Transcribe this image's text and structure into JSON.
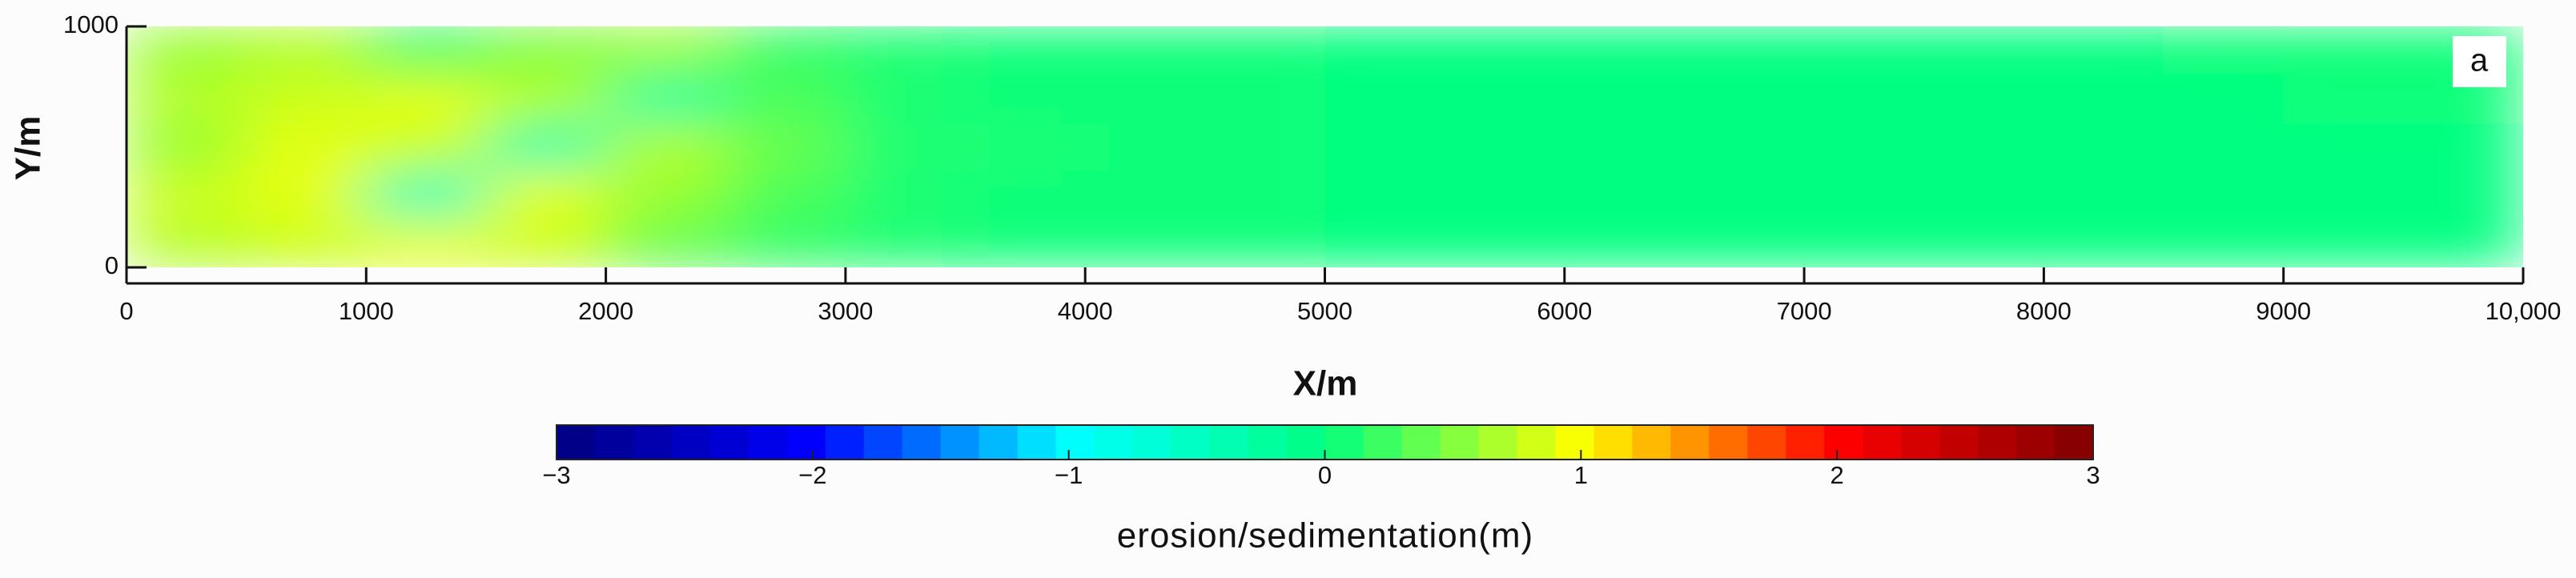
{
  "chart_data": {
    "type": "heatmap",
    "annotation": "a",
    "x_label": "X/m",
    "y_label": "Y/m",
    "x_bins": [
      0,
      500,
      1000,
      1500,
      2000,
      2500,
      3000,
      3500,
      4000,
      4500,
      5000,
      5500,
      6000,
      6500,
      7000,
      7500,
      8000,
      8500,
      9000,
      9500,
      10000
    ],
    "y_bins": [
      0,
      200,
      400,
      600,
      800,
      1000
    ],
    "z": [
      [
        0.7,
        0.8,
        0.9,
        0.8,
        0.4,
        0.2,
        0.1,
        0.05,
        0.05,
        0.05,
        0,
        0,
        0,
        0,
        0,
        0,
        0,
        0,
        0,
        0
      ],
      [
        0.8,
        0.9,
        -0.5,
        0.9,
        0.6,
        0.3,
        0.1,
        0.05,
        0.05,
        0.05,
        0,
        0,
        0,
        0,
        0,
        0,
        0,
        0,
        0,
        0
      ],
      [
        0.6,
        0.9,
        0.8,
        -0.4,
        0.7,
        0.4,
        0.1,
        0.1,
        0.05,
        0.05,
        0,
        0,
        0,
        0,
        0,
        0,
        0,
        0,
        0,
        0
      ],
      [
        0.7,
        0.8,
        0.9,
        0.7,
        -0.3,
        0.3,
        0.1,
        0.05,
        0.05,
        0.05,
        0,
        0,
        0,
        0,
        0,
        0,
        0,
        0,
        0.05,
        0.05
      ],
      [
        0.6,
        0.7,
        0.2,
        0.5,
        0.6,
        0.2,
        0.1,
        0.05,
        0.05,
        0.05,
        0,
        0,
        0,
        0,
        0,
        0,
        0,
        0.05,
        0.05,
        0.05
      ]
    ],
    "xlim": [
      0,
      10000
    ],
    "xticks": [
      0,
      1000,
      2000,
      3000,
      4000,
      5000,
      6000,
      7000,
      8000,
      9000,
      {
        "value": 10000,
        "label": "10,000"
      }
    ],
    "ylim": [
      0,
      1000
    ],
    "yticks": [
      0,
      1000
    ],
    "colorbar": {
      "label": "erosion/sedimentation(m)",
      "lim": [
        -3,
        3
      ],
      "ticks": [
        {
          "value": -3,
          "label": "−3"
        },
        {
          "value": -2,
          "label": "−2"
        },
        {
          "value": -1,
          "label": "−1"
        },
        0,
        1,
        2,
        3
      ],
      "colormap": [
        "#00007f",
        "#0000ff",
        "#00ffff",
        "#00ff80",
        "#ffff00",
        "#ff0000",
        "#7f0000"
      ]
    }
  }
}
